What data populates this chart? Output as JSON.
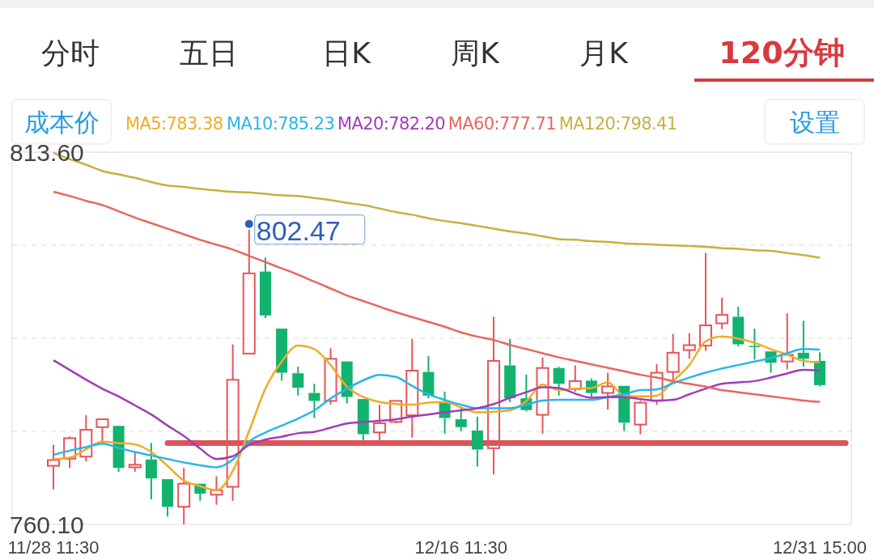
{
  "chart_data": {
    "type": "candlestick",
    "categories": [
      "11/28 11:30",
      null,
      null,
      null,
      null,
      null,
      null,
      null,
      null,
      null,
      null,
      null,
      null,
      null,
      null,
      null,
      null,
      null,
      null,
      null,
      null,
      null,
      null,
      null,
      null,
      "12/16 11:30",
      null,
      null,
      null,
      null,
      null,
      null,
      null,
      null,
      null,
      null,
      null,
      null,
      null,
      null,
      null,
      null,
      null,
      null,
      null,
      null,
      null,
      "12/31 15:00"
    ],
    "ohlc": [
      [
        768.52,
        771.54,
        765.12,
        769.35
      ],
      [
        769.54,
        772.75,
        768.22,
        772.49
      ],
      [
        769.84,
        775.78,
        769.16,
        773.7
      ],
      [
        774.08,
        775.21,
        772.0,
        775.21
      ],
      [
        774.26,
        774.26,
        767.65,
        768.22
      ],
      [
        768.3,
        770.48,
        767.65,
        768.67
      ],
      [
        769.43,
        771.81,
        763.69,
        766.71
      ],
      [
        766.6,
        766.6,
        761.23,
        762.63
      ],
      [
        762.63,
        768.22,
        760.1,
        765.95
      ],
      [
        765.95,
        765.95,
        763.5,
        764.52
      ],
      [
        764.37,
        767.01,
        762.93,
        765.01
      ],
      [
        765.5,
        785.98,
        763.5,
        780.88
      ],
      [
        784.65,
        802.47,
        784.65,
        796.18
      ],
      [
        796.44,
        798.45,
        789.75,
        790.13
      ],
      [
        788.24,
        788.24,
        780.76,
        781.9
      ],
      [
        781.82,
        782.77,
        778.61,
        779.74
      ],
      [
        778.99,
        780.31,
        775.4,
        777.85
      ],
      [
        777.85,
        785.41,
        777.29,
        783.9
      ],
      [
        783.52,
        783.52,
        777.48,
        778.42
      ],
      [
        778.12,
        778.12,
        772.19,
        773.06
      ],
      [
        773.32,
        777.29,
        772.0,
        774.64
      ],
      [
        774.83,
        777.85,
        774.64,
        777.85
      ],
      [
        775.78,
        786.73,
        772.57,
        782.2
      ],
      [
        782.01,
        784.28,
        778.23,
        778.61
      ],
      [
        777.66,
        779.18,
        773.13,
        775.4
      ],
      [
        775.21,
        777.1,
        773.51,
        774.08
      ],
      [
        773.58,
        775.59,
        768.41,
        770.86
      ],
      [
        771.05,
        789.94,
        767.28,
        783.6
      ],
      [
        782.95,
        786.73,
        777.66,
        778.23
      ],
      [
        778.23,
        781.63,
        776.35,
        776.53
      ],
      [
        775.85,
        784.09,
        773.13,
        782.58
      ],
      [
        782.58,
        782.77,
        778.61,
        780.31
      ],
      [
        779.55,
        782.95,
        779.18,
        780.69
      ],
      [
        780.76,
        781.07,
        778.42,
        778.99
      ],
      [
        778.99,
        781.9,
        776.61,
        779.93
      ],
      [
        780.01,
        780.01,
        773.51,
        774.72
      ],
      [
        774.45,
        777.85,
        773.06,
        777.59
      ],
      [
        777.85,
        783.14,
        777.29,
        781.9
      ],
      [
        782.01,
        787.49,
        780.69,
        784.77
      ],
      [
        785.15,
        787.6,
        783.9,
        785.86
      ],
      [
        785.79,
        799.13,
        785.03,
        788.7
      ],
      [
        789.0,
        792.67,
        788.17,
        790.21
      ],
      [
        789.94,
        791.38,
        785.67,
        785.98
      ],
      [
        785.75,
        788.24,
        783.79,
        785.6
      ],
      [
        784.96,
        784.96,
        781.9,
        783.33
      ],
      [
        783.52,
        790.44,
        782.39,
        784.47
      ],
      [
        784.77,
        789.38,
        782.77,
        783.9
      ],
      [
        783.6,
        784.85,
        779.93,
        780.12
      ]
    ],
    "series": [
      {
        "name": "MA5:783.38",
        "color": "#f0ac28",
        "type": "line",
        "values": [
          769.5,
          769.7,
          770.9,
          772.0,
          771.8,
          771.6,
          770.5,
          768.5,
          766.4,
          765.6,
          765.0,
          767.8,
          773.5,
          779.6,
          783.5,
          785.8,
          785.3,
          783.0,
          779.9,
          778.4,
          777.7,
          777.4,
          777.3,
          777.6,
          777.7,
          776.9,
          776.2,
          776.3,
          776.5,
          777.8,
          780.2,
          779.4,
          779.6,
          779.7,
          780.5,
          778.6,
          778.5,
          778.6,
          780.7,
          783.0,
          786.4,
          787.1,
          786.8,
          786.2,
          785.3,
          784.5,
          783.6,
          783.38
        ]
      },
      {
        "name": "MA10:785.23",
        "color": "#2bb6e8",
        "type": "line",
        "values": [
          770.1,
          770.7,
          771.2,
          771.7,
          771.1,
          770.5,
          770.0,
          769.5,
          769.0,
          768.6,
          768.3,
          769.4,
          772.0,
          773.3,
          774.3,
          775.3,
          776.5,
          778.2,
          779.6,
          780.8,
          781.6,
          781.3,
          780.0,
          778.8,
          778.0,
          777.3,
          776.8,
          776.8,
          776.8,
          777.3,
          777.9,
          778.0,
          778.0,
          778.0,
          778.4,
          778.8,
          779.4,
          779.5,
          780.4,
          781.2,
          781.9,
          782.5,
          783.0,
          783.5,
          784.0,
          784.7,
          785.3,
          785.23
        ]
      },
      {
        "name": "MA20:782.20",
        "color": "#a23cb8",
        "type": "line",
        "values": [
          783.7,
          782.3,
          780.9,
          779.6,
          778.5,
          777.2,
          775.9,
          774.3,
          772.8,
          771.0,
          769.5,
          769.9,
          771.5,
          772.3,
          772.7,
          773.2,
          773.4,
          774.0,
          774.6,
          774.8,
          775.0,
          775.2,
          775.6,
          775.9,
          776.2,
          776.5,
          776.8,
          777.4,
          778.3,
          779.1,
          779.8,
          779.7,
          778.9,
          778.3,
          778.4,
          778.4,
          778.1,
          777.9,
          778.0,
          778.8,
          779.6,
          780.3,
          780.5,
          780.7,
          781.2,
          781.8,
          782.3,
          782.2
        ]
      },
      {
        "name": "MA60:777.71",
        "color": "#e8675f",
        "type": "line",
        "values": [
          807.9,
          807.3,
          806.6,
          806.0,
          805.1,
          804.2,
          803.4,
          802.6,
          801.8,
          801.0,
          800.3,
          799.6,
          798.7,
          797.8,
          796.9,
          796.0,
          795.0,
          794.0,
          793.0,
          792.2,
          791.4,
          790.6,
          789.9,
          789.2,
          788.5,
          787.7,
          787.1,
          786.6,
          785.9,
          785.3,
          784.7,
          784.1,
          783.6,
          783.1,
          782.6,
          782.1,
          781.6,
          781.2,
          780.7,
          780.3,
          779.9,
          779.4,
          779.1,
          778.8,
          778.5,
          778.2,
          777.9,
          777.71
        ]
      },
      {
        "name": "MA120:798.41",
        "color": "#c8b03e",
        "type": "line",
        "values": [
          813.5,
          812.6,
          811.8,
          810.9,
          810.4,
          809.9,
          809.3,
          808.8,
          808.6,
          808.3,
          808.1,
          807.9,
          807.8,
          807.6,
          807.4,
          807.3,
          807.0,
          806.7,
          806.3,
          806.0,
          805.5,
          805.0,
          804.6,
          804.1,
          803.7,
          803.4,
          803.0,
          802.6,
          802.2,
          801.9,
          801.5,
          801.1,
          801.0,
          800.8,
          800.7,
          800.5,
          800.4,
          800.3,
          800.2,
          800.1,
          800.0,
          799.8,
          799.7,
          799.5,
          799.4,
          799.1,
          798.8,
          798.41
        ]
      }
    ],
    "ylim": [
      760.1,
      813.6
    ],
    "yticks": [
      {
        "value": 760.1,
        "label": "760.10"
      },
      {
        "value": 773.475,
        "label": null
      },
      {
        "value": 786.85,
        "label": null
      },
      {
        "value": 800.225,
        "label": null
      },
      {
        "value": 813.6,
        "label": "813.60"
      }
    ],
    "grid": "y",
    "ref_lines": [
      {
        "axis": "y",
        "value": 771.8,
        "color": "#dc5458"
      }
    ],
    "annotations": [
      "分时",
      "五日",
      "日K",
      "周K",
      "月K",
      "120分钟",
      "成本价",
      "设置",
      "802.47"
    ]
  }
}
